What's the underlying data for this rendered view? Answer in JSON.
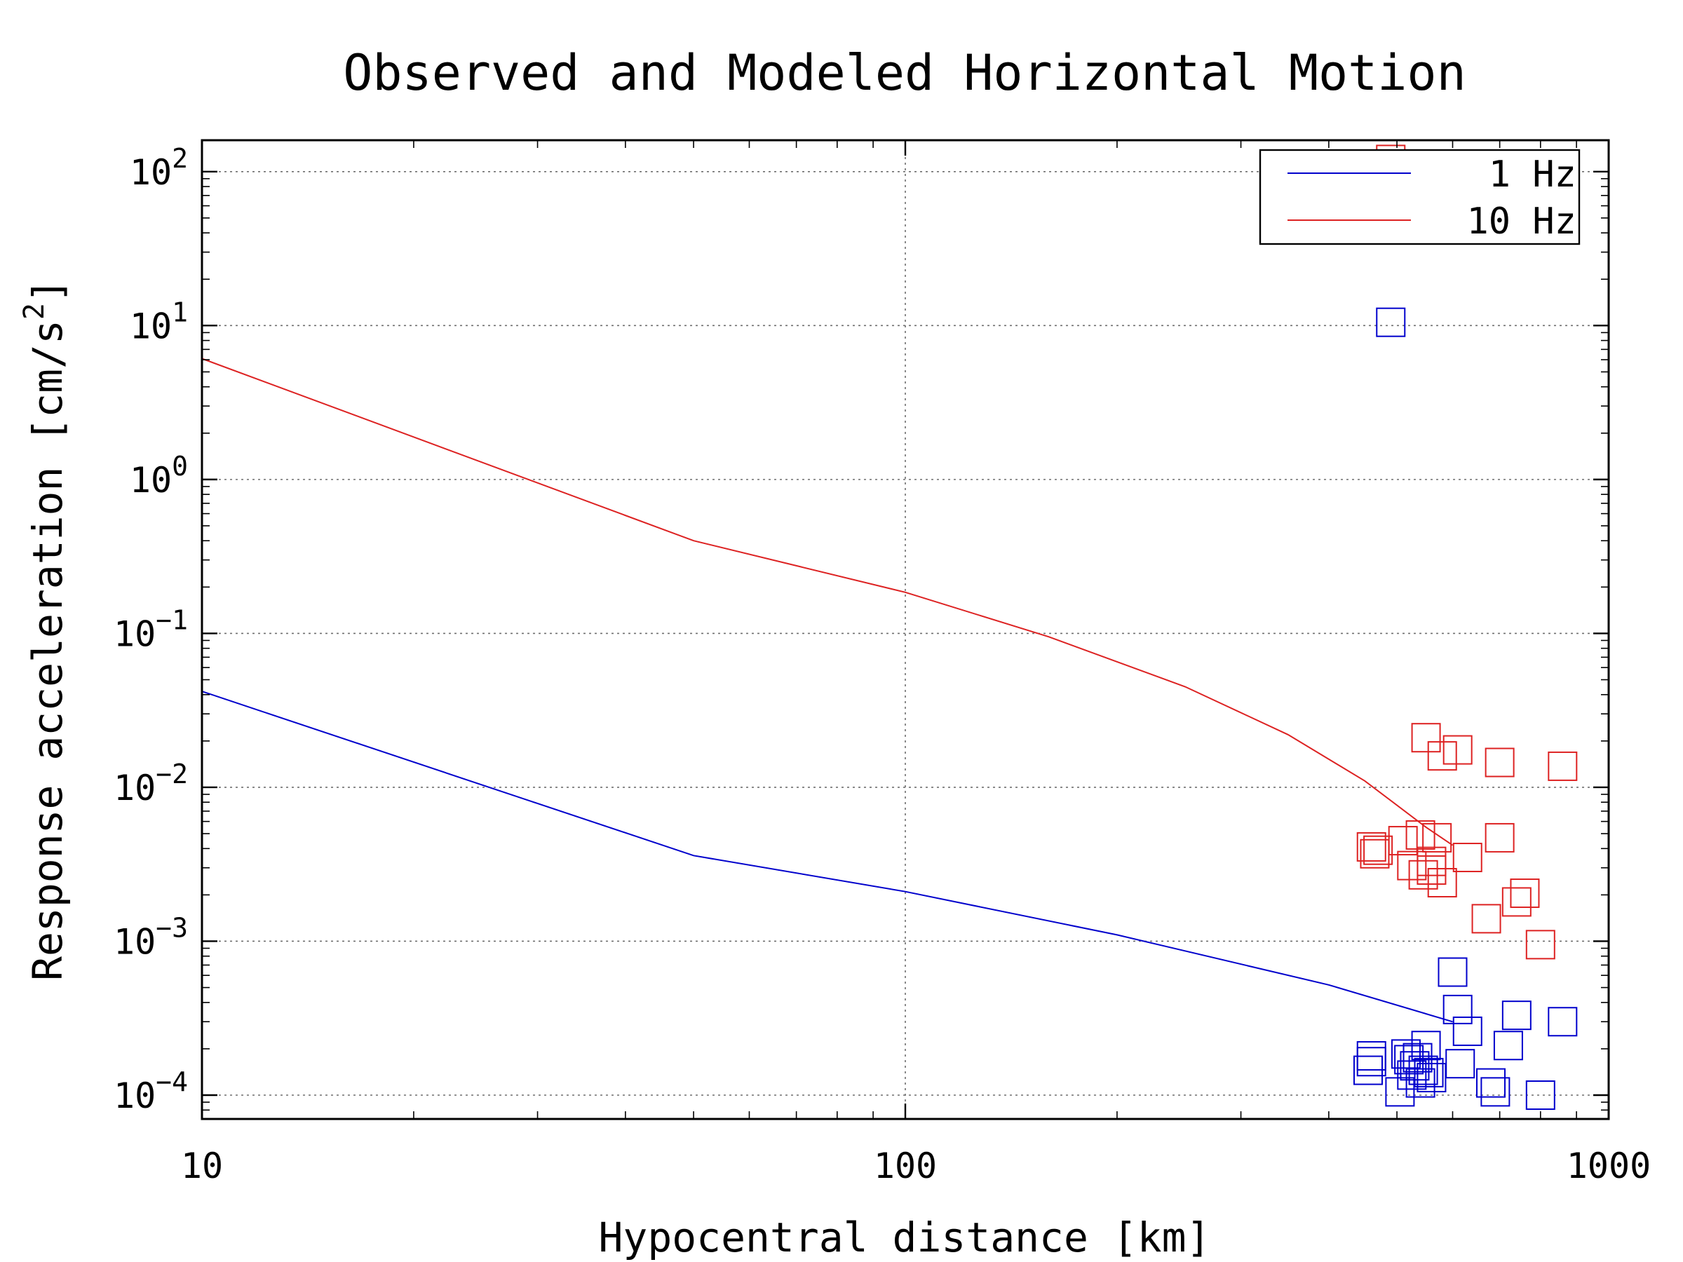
{
  "chart_data": {
    "type": "scatter",
    "title": "Observed and Modeled Horizontal Motion",
    "xlabel": "Hypocentral distance [km]",
    "ylabel": "Response acceleration [cm/s",
    "ylabel_sup": "2",
    "ylabel_end": "]",
    "xscale": "log",
    "yscale": "log",
    "xlim": [
      10,
      1000
    ],
    "ylim": [
      7e-05,
      160
    ],
    "x_ticks": [
      {
        "value": 10,
        "label": "10"
      },
      {
        "value": 100,
        "label": "100"
      },
      {
        "value": 1000,
        "label": "1000"
      }
    ],
    "y_ticks": [
      {
        "value": 0.0001,
        "base": "10",
        "exp": "−4"
      },
      {
        "value": 0.001,
        "base": "10",
        "exp": "−3"
      },
      {
        "value": 0.01,
        "base": "10",
        "exp": "−2"
      },
      {
        "value": 0.1,
        "base": "10",
        "exp": "−1"
      },
      {
        "value": 1,
        "base": "10",
        "exp": "0"
      },
      {
        "value": 10,
        "base": "10",
        "exp": "1"
      },
      {
        "value": 100,
        "base": "10",
        "exp": "2"
      }
    ],
    "grid": true,
    "legend_position": "top-right",
    "series": [
      {
        "name": "1 Hz",
        "color": "#0000cc",
        "line": {
          "x": [
            10,
            50,
            100,
            200,
            400,
            600
          ],
          "y": [
            0.042,
            0.0036,
            0.0021,
            0.0011,
            0.00052,
            0.0003
          ]
        },
        "points": {
          "x": [
            490,
            460,
            460,
            455,
            505,
            515,
            520,
            530,
            525,
            540,
            560,
            555,
            545,
            535,
            550,
            600,
            610,
            630,
            615,
            680,
            690,
            720,
            740,
            860,
            800
          ],
          "y": [
            10.5,
            0.00018,
            0.000165,
            0.000145,
            0.000105,
            0.000185,
            0.00017,
            0.000155,
            0.000135,
            0.00012,
            0.00013,
            0.00014,
            0.000145,
            0.000175,
            0.00021,
            0.00063,
            0.00036,
            0.00026,
            0.00016,
            0.00012,
            0.000105,
            0.00021,
            0.00033,
            0.0003,
            0.0001
          ]
        }
      },
      {
        "name": "10 Hz",
        "color": "#dd2222",
        "line": {
          "x": [
            10,
            50,
            100,
            160,
            250,
            350,
            450,
            550,
            600
          ],
          "y": [
            6.1,
            0.4,
            0.185,
            0.095,
            0.045,
            0.022,
            0.011,
            0.0055,
            0.0042
          ]
        },
        "points": {
          "x": [
            490,
            550,
            580,
            610,
            700,
            860,
            460,
            470,
            465,
            510,
            540,
            525,
            545,
            560,
            580,
            570,
            560,
            630,
            700,
            670,
            760,
            740,
            800
          ],
          "y": [
            120,
            0.021,
            0.016,
            0.0175,
            0.0145,
            0.0137,
            0.0041,
            0.0039,
            0.0037,
            0.0045,
            0.0049,
            0.0031,
            0.0027,
            0.0029,
            0.0024,
            0.0047,
            0.0033,
            0.0035,
            0.0047,
            0.0014,
            0.00205,
            0.0018,
            0.00095
          ]
        }
      }
    ]
  }
}
